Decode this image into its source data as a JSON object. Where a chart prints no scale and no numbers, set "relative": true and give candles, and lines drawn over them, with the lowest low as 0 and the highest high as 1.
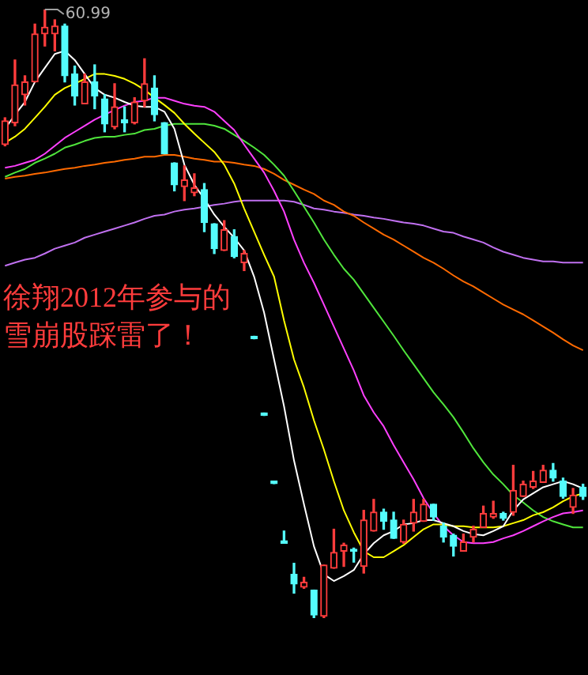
{
  "chart_data": {
    "type": "candlestick",
    "relative": true,
    "title": "徐翔2012年参与的雪崩股踩雷了！",
    "annotations": [
      "60.99"
    ],
    "legend": false,
    "categories": [
      null,
      null,
      null,
      null,
      null,
      null,
      null,
      null,
      null,
      null,
      null,
      null,
      null,
      null,
      null,
      null,
      null,
      null,
      null,
      null,
      null,
      null,
      null,
      null,
      null,
      null,
      null,
      null,
      null,
      null,
      null,
      null,
      null,
      null,
      null,
      null,
      null,
      null,
      null,
      null,
      null,
      null,
      null,
      null,
      null,
      null,
      null,
      null,
      null,
      null,
      null,
      null,
      null,
      null,
      null,
      null,
      null,
      null,
      null
    ],
    "ohlc": [
      [
        0.778,
        0.822,
        0.776,
        0.817
      ],
      [
        0.814,
        0.917,
        0.809,
        0.876
      ],
      [
        0.86,
        0.891,
        0.843,
        0.881
      ],
      [
        0.881,
        0.976,
        0.881,
        0.96
      ],
      [
        0.96,
        1,
        0.94,
        0.971
      ],
      [
        0.96,
        0.983,
        0.932,
        0.973
      ],
      [
        0.973,
        0.976,
        0.881,
        0.891
      ],
      [
        0.894,
        0.907,
        0.843,
        0.858
      ],
      [
        0.845,
        0.894,
        0.845,
        0.881
      ],
      [
        0.881,
        0.909,
        0.837,
        0.858
      ],
      [
        0.853,
        0.86,
        0.799,
        0.812
      ],
      [
        0.807,
        0.878,
        0.804,
        0.84
      ],
      [
        0.819,
        0.84,
        0.799,
        0.814
      ],
      [
        0.814,
        0.855,
        0.812,
        0.848
      ],
      [
        0.85,
        0.919,
        0.84,
        0.878
      ],
      [
        0.871,
        0.891,
        0.817,
        0.827
      ],
      [
        0.814,
        0.814,
        0.763,
        0.763
      ],
      [
        0.748,
        0.748,
        0.702,
        0.712
      ],
      [
        0.709,
        0.743,
        0.686,
        0.72
      ],
      [
        0.699,
        0.73,
        0.694,
        0.707
      ],
      [
        0.704,
        0.714,
        0.635,
        0.65
      ],
      [
        0.648,
        0.648,
        0.599,
        0.607
      ],
      [
        0.604,
        0.653,
        0.604,
        0.638
      ],
      [
        0.627,
        0.638,
        0.592,
        0.594
      ],
      [
        0.584,
        0.604,
        0.571,
        0.599
      ],
      [
        0.463,
        0.463,
        0.459,
        0.459
      ],
      [
        0.337,
        0.337,
        0.333,
        0.333
      ],
      [
        0.225,
        0.225,
        0.221,
        0.221
      ],
      [
        0.127,
        0.143,
        0.123,
        0.123
      ],
      [
        0.072,
        0.09,
        0.041,
        0.056
      ],
      [
        0.051,
        0.067,
        0.049,
        0.059
      ],
      [
        0.046,
        0.046,
        0,
        0.005
      ],
      [
        0.003,
        0.087,
        0,
        0.087
      ],
      [
        0.082,
        0.146,
        0.082,
        0.108
      ],
      [
        0.11,
        0.123,
        0.085,
        0.12
      ],
      [
        0.113,
        0.115,
        0.092,
        0.11
      ],
      [
        0.085,
        0.177,
        0.074,
        0.161
      ],
      [
        0.143,
        0.195,
        0.143,
        0.174
      ],
      [
        0.174,
        0.179,
        0.146,
        0.159
      ],
      [
        0.161,
        0.174,
        0.131,
        0.131
      ],
      [
        0.125,
        0.161,
        0.123,
        0.154
      ],
      [
        0.156,
        0.195,
        0.143,
        0.174
      ],
      [
        0.159,
        0.195,
        0.159,
        0.187
      ],
      [
        0.187,
        0.187,
        0.161,
        0.166
      ],
      [
        0.151,
        0.156,
        0.125,
        0.133
      ],
      [
        0.136,
        0.138,
        0.102,
        0.118
      ],
      [
        0.11,
        0.138,
        0.11,
        0.125
      ],
      [
        0.133,
        0.151,
        0.125,
        0.146
      ],
      [
        0.149,
        0.184,
        0.149,
        0.172
      ],
      [
        0.166,
        0.192,
        0.164,
        0.172
      ],
      [
        0.172,
        0.174,
        0.161,
        0.164
      ],
      [
        0.174,
        0.251,
        0.169,
        0.21
      ],
      [
        0.2,
        0.225,
        0.2,
        0.22
      ],
      [
        0.215,
        0.241,
        0.213,
        0.225
      ],
      [
        0.223,
        0.251,
        0.223,
        0.243
      ],
      [
        0.243,
        0.254,
        0.225,
        0.23
      ],
      [
        0.225,
        0.23,
        0.197,
        0.2
      ],
      [
        0.182,
        0.213,
        0.172,
        0.202
      ],
      [
        0.215,
        0.22,
        0.195,
        0.2
      ]
    ],
    "colors": [
      "#ff3c3c",
      "#ff3c3c",
      "#ff3c3c",
      "#ff3c3c",
      "#ff3c3c",
      "#ff3c3c",
      "#54fcfc",
      "#54fcfc",
      "#ff3c3c",
      "#54fcfc",
      "#54fcfc",
      "#ff3c3c",
      "#54fcfc",
      "#ff3c3c",
      "#ff3c3c",
      "#54fcfc",
      "#54fcfc",
      "#54fcfc",
      "#ff3c3c",
      "#ff3c3c",
      "#54fcfc",
      "#54fcfc",
      "#ff3c3c",
      "#54fcfc",
      "#ff3c3c",
      "#54fcfc",
      "#54fcfc",
      "#54fcfc",
      "#54fcfc",
      "#54fcfc",
      "#ff3c3c",
      "#54fcfc",
      "#ff3c3c",
      "#ff3c3c",
      "#ff3c3c",
      "#54fcfc",
      "#ff3c3c",
      "#ff3c3c",
      "#54fcfc",
      "#54fcfc",
      "#ff3c3c",
      "#ff3c3c",
      "#ff3c3c",
      "#54fcfc",
      "#54fcfc",
      "#54fcfc",
      "#ff3c3c",
      "#ff3c3c",
      "#ff3c3c",
      "#ff3c3c",
      "#54fcfc",
      "#ff3c3c",
      "#ff3c3c",
      "#ff3c3c",
      "#ff3c3c",
      "#54fcfc",
      "#54fcfc",
      "#ff3c3c",
      "#54fcfc"
    ],
    "series": [
      {
        "type": "line",
        "color": "#ffffff",
        "values": [
          0.804,
          0.827,
          0.848,
          0.881,
          0.904,
          0.927,
          0.932,
          0.917,
          0.894,
          0.871,
          0.86,
          0.855,
          0.848,
          0.842,
          0.84,
          0.84,
          0.832,
          0.804,
          0.745,
          0.712,
          0.689,
          0.663,
          0.643,
          0.625,
          0.604,
          0.561,
          0.502,
          0.425,
          0.348,
          0.259,
          0.187,
          0.118,
          0.072,
          0.061,
          0.069,
          0.079,
          0.105,
          0.123,
          0.136,
          0.143,
          0.154,
          0.156,
          0.161,
          0.161,
          0.156,
          0.151,
          0.143,
          0.138,
          0.136,
          0.143,
          0.151,
          0.177,
          0.195,
          0.205,
          0.215,
          0.22,
          0.225,
          0.22,
          0.213
        ]
      },
      {
        "type": "line",
        "color": "#ffff00",
        "values": [
          0.781,
          0.791,
          0.804,
          0.822,
          0.84,
          0.86,
          0.871,
          0.878,
          0.886,
          0.894,
          0.894,
          0.891,
          0.886,
          0.878,
          0.868,
          0.855,
          0.843,
          0.83,
          0.812,
          0.796,
          0.781,
          0.766,
          0.745,
          0.714,
          0.673,
          0.635,
          0.597,
          0.561,
          0.489,
          0.425,
          0.379,
          0.325,
          0.277,
          0.225,
          0.177,
          0.141,
          0.11,
          0.1,
          0.1,
          0.11,
          0.12,
          0.133,
          0.146,
          0.154,
          0.154,
          0.151,
          0.151,
          0.149,
          0.149,
          0.149,
          0.151,
          0.156,
          0.161,
          0.169,
          0.174,
          0.182,
          0.192,
          0.2,
          0.205
        ]
      },
      {
        "type": "line",
        "color": "#ff40ff",
        "values": [
          0.74,
          0.743,
          0.748,
          0.753,
          0.763,
          0.776,
          0.789,
          0.799,
          0.809,
          0.819,
          0.827,
          0.835,
          0.842,
          0.848,
          0.85,
          0.855,
          0.855,
          0.85,
          0.845,
          0.842,
          0.84,
          0.832,
          0.817,
          0.802,
          0.778,
          0.755,
          0.732,
          0.702,
          0.668,
          0.622,
          0.584,
          0.551,
          0.515,
          0.479,
          0.443,
          0.407,
          0.366,
          0.338,
          0.315,
          0.284,
          0.256,
          0.228,
          0.197,
          0.172,
          0.151,
          0.136,
          0.125,
          0.123,
          0.123,
          0.125,
          0.131,
          0.136,
          0.143,
          0.151,
          0.159,
          0.166,
          0.172,
          0.174,
          0.177
        ]
      },
      {
        "type": "line",
        "color": "#50e63c",
        "values": [
          0.725,
          0.732,
          0.738,
          0.748,
          0.755,
          0.763,
          0.773,
          0.778,
          0.784,
          0.789,
          0.791,
          0.791,
          0.794,
          0.796,
          0.802,
          0.804,
          0.809,
          0.812,
          0.812,
          0.812,
          0.812,
          0.809,
          0.804,
          0.794,
          0.784,
          0.773,
          0.761,
          0.745,
          0.727,
          0.702,
          0.676,
          0.65,
          0.622,
          0.597,
          0.574,
          0.556,
          0.533,
          0.51,
          0.487,
          0.464,
          0.44,
          0.417,
          0.394,
          0.371,
          0.351,
          0.33,
          0.305,
          0.279,
          0.256,
          0.236,
          0.22,
          0.202,
          0.19,
          0.177,
          0.166,
          0.159,
          0.154,
          0.149,
          0.149
        ]
      },
      {
        "type": "line",
        "color": "#ff6a00",
        "values": [
          0.722,
          0.725,
          0.727,
          0.73,
          0.732,
          0.735,
          0.738,
          0.74,
          0.743,
          0.745,
          0.748,
          0.75,
          0.753,
          0.755,
          0.758,
          0.758,
          0.761,
          0.761,
          0.758,
          0.755,
          0.753,
          0.75,
          0.75,
          0.748,
          0.745,
          0.743,
          0.738,
          0.73,
          0.72,
          0.712,
          0.704,
          0.697,
          0.686,
          0.679,
          0.668,
          0.661,
          0.65,
          0.64,
          0.63,
          0.622,
          0.612,
          0.602,
          0.592,
          0.584,
          0.574,
          0.563,
          0.553,
          0.545,
          0.535,
          0.525,
          0.515,
          0.507,
          0.499,
          0.489,
          0.479,
          0.469,
          0.458,
          0.448,
          0.44
        ]
      },
      {
        "type": "line",
        "color": "#c070f0",
        "values": [
          0.579,
          0.584,
          0.589,
          0.592,
          0.599,
          0.607,
          0.612,
          0.617,
          0.625,
          0.63,
          0.635,
          0.64,
          0.645,
          0.65,
          0.656,
          0.661,
          0.663,
          0.668,
          0.671,
          0.673,
          0.676,
          0.679,
          0.681,
          0.684,
          0.686,
          0.686,
          0.686,
          0.686,
          0.686,
          0.684,
          0.679,
          0.673,
          0.671,
          0.668,
          0.666,
          0.663,
          0.661,
          0.658,
          0.656,
          0.653,
          0.65,
          0.648,
          0.645,
          0.64,
          0.635,
          0.633,
          0.627,
          0.622,
          0.617,
          0.609,
          0.602,
          0.597,
          0.592,
          0.589,
          0.586,
          0.586,
          0.584,
          0.584,
          0.584
        ]
      }
    ]
  }
}
